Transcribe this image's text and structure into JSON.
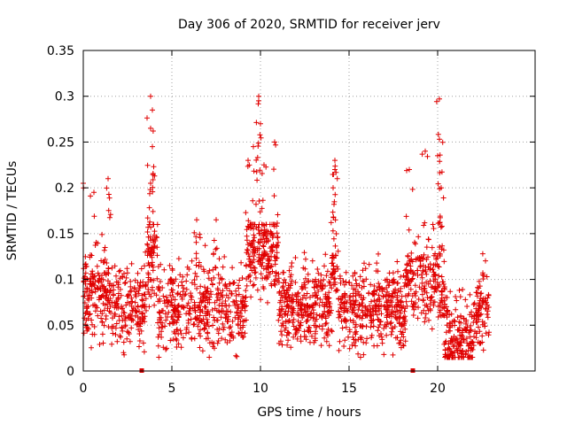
{
  "chart_data": {
    "type": "scatter",
    "title": "Day 306 of 2020, SRMTID for receiver jerv",
    "xlabel": "GPS time / hours",
    "ylabel": "SRMTID / TECUs",
    "xlim": [
      0,
      25.5
    ],
    "ylim": [
      0,
      0.35
    ],
    "xticks": [
      0,
      5,
      10,
      15,
      20
    ],
    "xtick_labels": [
      "0",
      "5",
      "10",
      "15",
      "20"
    ],
    "yticks": [
      0,
      0.05,
      0.1,
      0.15,
      0.2,
      0.25,
      0.3,
      0.35
    ],
    "ytick_labels": [
      "0",
      "0.05",
      "0.1",
      "0.15",
      "0.2",
      "0.25",
      "0.3",
      "0.35"
    ],
    "grid": true,
    "marker": "+",
    "color": "#e00000",
    "series": [
      {
        "name": "SRMTID",
        "x_start": 0.0,
        "x_end": 22.9,
        "baseline_range": [
          0.02,
          0.13
        ],
        "typical_value": 0.07,
        "peaks": [
          {
            "x": 0.0,
            "y": 0.205
          },
          {
            "x": 0.6,
            "y": 0.195
          },
          {
            "x": 1.4,
            "y": 0.21
          },
          {
            "x": 3.8,
            "y": 0.3
          },
          {
            "x": 3.9,
            "y": 0.285
          },
          {
            "x": 3.8,
            "y": 0.265
          },
          {
            "x": 3.9,
            "y": 0.245
          },
          {
            "x": 3.8,
            "y": 0.205
          },
          {
            "x": 6.4,
            "y": 0.165
          },
          {
            "x": 7.5,
            "y": 0.165
          },
          {
            "x": 9.3,
            "y": 0.23
          },
          {
            "x": 9.6,
            "y": 0.245
          },
          {
            "x": 9.9,
            "y": 0.3
          },
          {
            "x": 9.9,
            "y": 0.295
          },
          {
            "x": 10.0,
            "y": 0.27
          },
          {
            "x": 10.2,
            "y": 0.225
          },
          {
            "x": 10.8,
            "y": 0.25
          },
          {
            "x": 14.2,
            "y": 0.23
          },
          {
            "x": 14.2,
            "y": 0.22
          },
          {
            "x": 14.1,
            "y": 0.2
          },
          {
            "x": 18.4,
            "y": 0.22
          },
          {
            "x": 19.3,
            "y": 0.24
          },
          {
            "x": 20.1,
            "y": 0.297
          },
          {
            "x": 20.1,
            "y": 0.253
          },
          {
            "x": 20.0,
            "y": 0.235
          },
          {
            "x": 20.2,
            "y": 0.2
          }
        ],
        "activity_windows": [
          {
            "x0": 0.0,
            "x1": 1.6,
            "mean": 0.085
          },
          {
            "x0": 3.6,
            "x1": 4.2,
            "mean": 0.12
          },
          {
            "x0": 9.2,
            "x1": 11.0,
            "mean": 0.13
          },
          {
            "x0": 14.0,
            "x1": 14.4,
            "mean": 0.11
          },
          {
            "x0": 18.2,
            "x1": 20.3,
            "mean": 0.1
          },
          {
            "x0": 20.4,
            "x1": 22.0,
            "mean": 0.035
          }
        ]
      }
    ],
    "gap_markers": [
      3.3,
      18.6
    ]
  }
}
